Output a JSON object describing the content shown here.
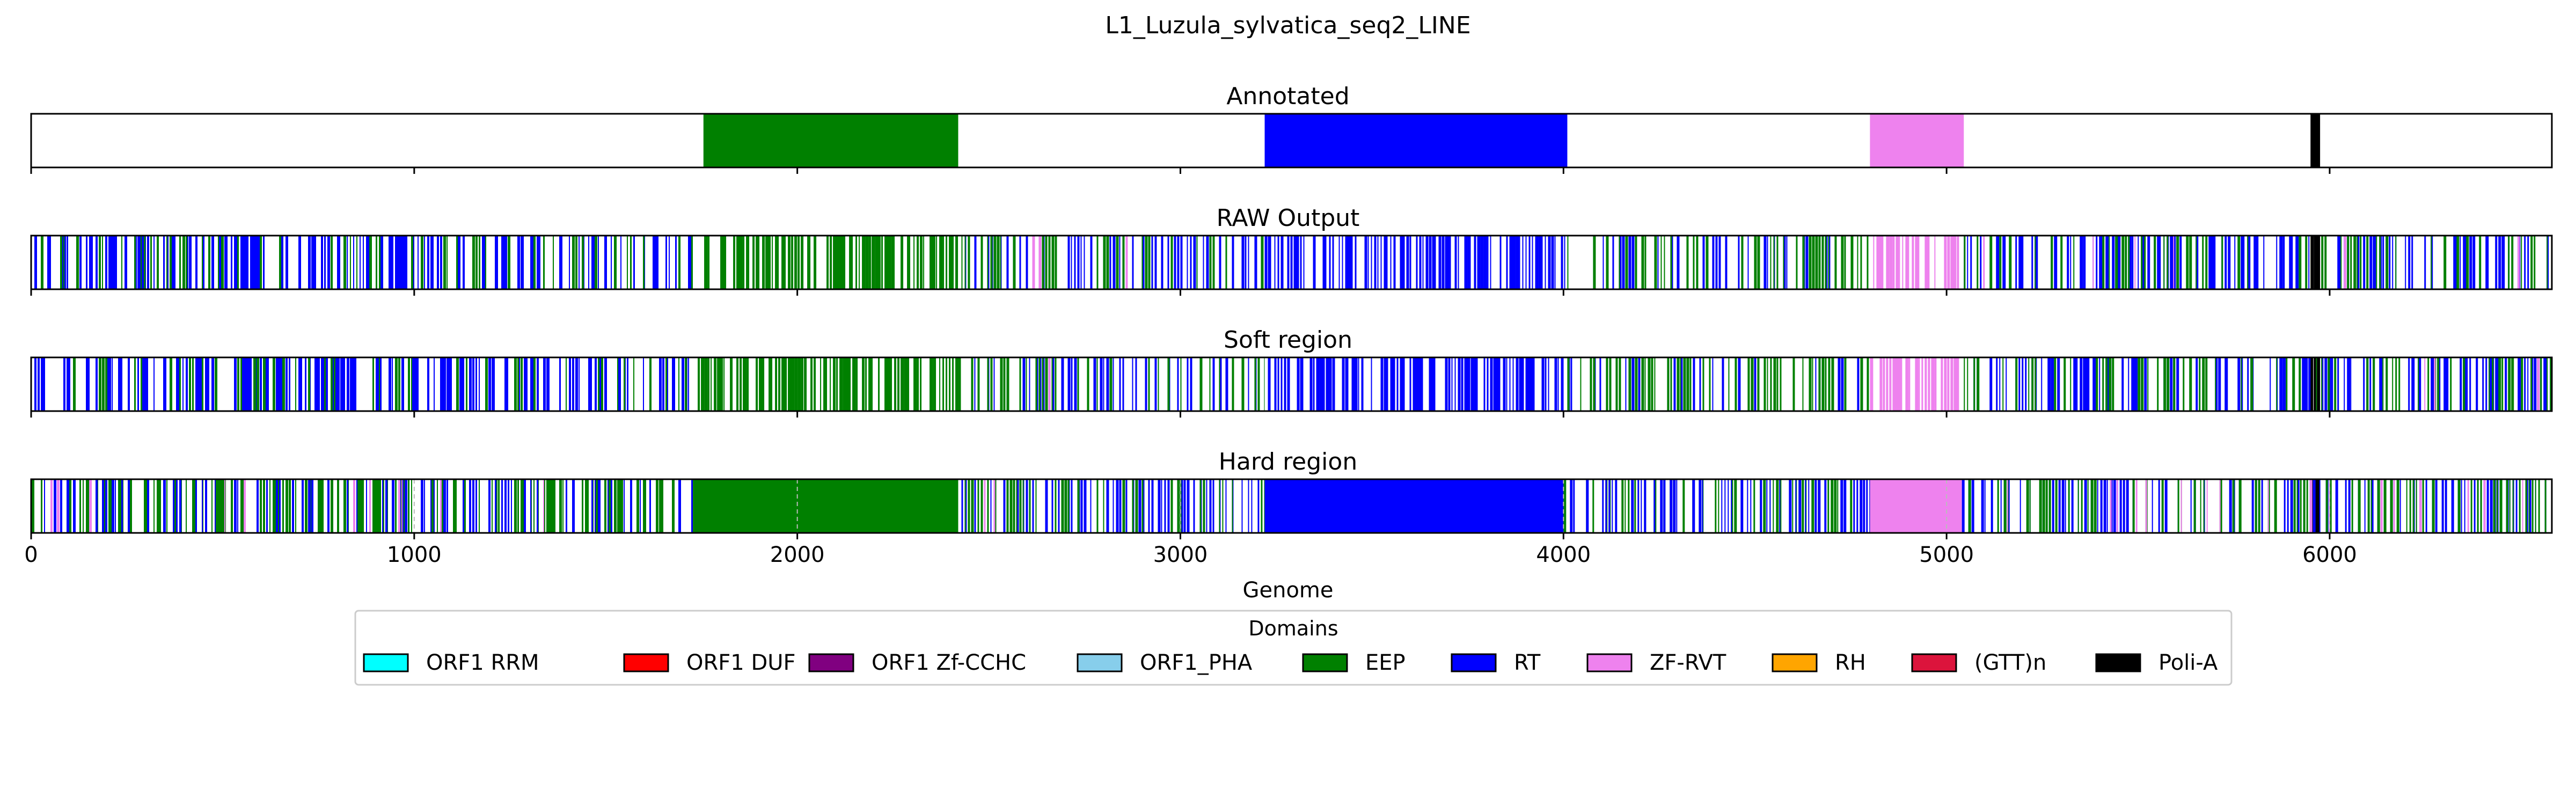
{
  "chart_data": {
    "type": "track",
    "title": "L1_Luzula_sylvatica_seq2_LINE",
    "xlabel": "Genome",
    "xlim": [
      0,
      6580
    ],
    "xticks": [
      0,
      1000,
      2000,
      3000,
      4000,
      5000,
      6000
    ],
    "legend": {
      "title": "Domains",
      "placement": "bottom-center",
      "entries": [
        {
          "name": "ORF1 RRM",
          "color": "#00ffff"
        },
        {
          "name": "ORF1 DUF",
          "color": "#ff0000"
        },
        {
          "name": "ORF1 Zf-CCHC",
          "color": "#800080"
        },
        {
          "name": "ORF1_PHA",
          "color": "#87ceeb"
        },
        {
          "name": "EEP",
          "color": "#008000"
        },
        {
          "name": "RT",
          "color": "#0000ff"
        },
        {
          "name": "ZF-RVT",
          "color": "#ee82ee"
        },
        {
          "name": "RH",
          "color": "#ffa500"
        },
        {
          "name": "(GTT)n",
          "color": "#dc143c"
        },
        {
          "name": "Poli-A",
          "color": "#000000"
        }
      ]
    },
    "tracks": [
      {
        "title": "Annotated",
        "style": "solid",
        "segments": [
          {
            "domain": "EEP",
            "start": 1755,
            "end": 2420
          },
          {
            "domain": "RT",
            "start": 3220,
            "end": 4010
          },
          {
            "domain": "ZF-RVT",
            "start": 4800,
            "end": 5045
          },
          {
            "domain": "Poli-A",
            "start": 5950,
            "end": 5975
          }
        ]
      },
      {
        "title": "RAW Output",
        "style": "striped",
        "regions": [
          {
            "domain": "RT",
            "start": 0,
            "end": 1740,
            "density": 0.6
          },
          {
            "domain": "EEP",
            "start": 0,
            "end": 1740,
            "density": 0.25
          },
          {
            "domain": "EEP",
            "start": 1740,
            "end": 2420,
            "density": 0.75
          },
          {
            "domain": "RT",
            "start": 2420,
            "end": 3220,
            "density": 0.45
          },
          {
            "domain": "EEP",
            "start": 2420,
            "end": 3220,
            "density": 0.3
          },
          {
            "domain": "ZF-RVT",
            "start": 2420,
            "end": 3220,
            "density": 0.03
          },
          {
            "domain": "RT",
            "start": 3220,
            "end": 4010,
            "density": 0.8
          },
          {
            "domain": "RT",
            "start": 4010,
            "end": 4800,
            "density": 0.35
          },
          {
            "domain": "EEP",
            "start": 4010,
            "end": 4800,
            "density": 0.4
          },
          {
            "domain": "ZF-RVT",
            "start": 4800,
            "end": 5045,
            "density": 0.55
          },
          {
            "domain": "RT",
            "start": 5045,
            "end": 6580,
            "density": 0.55
          },
          {
            "domain": "EEP",
            "start": 5045,
            "end": 6580,
            "density": 0.3
          },
          {
            "domain": "ZF-RVT",
            "start": 5045,
            "end": 6580,
            "density": 0.03
          },
          {
            "domain": "Poli-A",
            "start": 5950,
            "end": 5975,
            "density": 1.0
          }
        ]
      },
      {
        "title": "Soft region",
        "style": "striped",
        "regions": [
          {
            "domain": "RT",
            "start": 0,
            "end": 1740,
            "density": 0.6
          },
          {
            "domain": "EEP",
            "start": 0,
            "end": 1740,
            "density": 0.25
          },
          {
            "domain": "EEP",
            "start": 1740,
            "end": 2420,
            "density": 0.75
          },
          {
            "domain": "RT",
            "start": 2420,
            "end": 3220,
            "density": 0.45
          },
          {
            "domain": "EEP",
            "start": 2420,
            "end": 3220,
            "density": 0.3
          },
          {
            "domain": "ZF-RVT",
            "start": 2420,
            "end": 3220,
            "density": 0.03
          },
          {
            "domain": "RT",
            "start": 3220,
            "end": 4010,
            "density": 0.8
          },
          {
            "domain": "RT",
            "start": 4010,
            "end": 4800,
            "density": 0.35
          },
          {
            "domain": "EEP",
            "start": 4010,
            "end": 4800,
            "density": 0.4
          },
          {
            "domain": "ZF-RVT",
            "start": 4800,
            "end": 5045,
            "density": 0.55
          },
          {
            "domain": "RT",
            "start": 5045,
            "end": 6580,
            "density": 0.55
          },
          {
            "domain": "EEP",
            "start": 5045,
            "end": 6580,
            "density": 0.3
          },
          {
            "domain": "ZF-RVT",
            "start": 5045,
            "end": 6580,
            "density": 0.03
          },
          {
            "domain": "Poli-A",
            "start": 5950,
            "end": 5975,
            "density": 1.0
          }
        ]
      },
      {
        "title": "Hard region",
        "style": "filled",
        "segments": [
          {
            "domain": "EEP",
            "start": 1730,
            "end": 2420
          },
          {
            "domain": "RT",
            "start": 3220,
            "end": 4000
          },
          {
            "domain": "ZF-RVT",
            "start": 4800,
            "end": 5040
          },
          {
            "domain": "Poli-A",
            "start": 5950,
            "end": 5975
          }
        ],
        "regions": [
          {
            "domain": "EEP",
            "start": 0,
            "end": 1730,
            "density": 0.55
          },
          {
            "domain": "RT",
            "start": 0,
            "end": 1730,
            "density": 0.35
          },
          {
            "domain": "ZF-RVT",
            "start": 0,
            "end": 1730,
            "density": 0.04
          },
          {
            "domain": "RT",
            "start": 2420,
            "end": 3220,
            "density": 0.5
          },
          {
            "domain": "EEP",
            "start": 2420,
            "end": 3220,
            "density": 0.4
          },
          {
            "domain": "ZF-RVT",
            "start": 2420,
            "end": 3220,
            "density": 0.04
          },
          {
            "domain": "EEP",
            "start": 4000,
            "end": 4800,
            "density": 0.5
          },
          {
            "domain": "RT",
            "start": 4000,
            "end": 4800,
            "density": 0.4
          },
          {
            "domain": "RT",
            "start": 5040,
            "end": 6580,
            "density": 0.5
          },
          {
            "domain": "EEP",
            "start": 5040,
            "end": 6580,
            "density": 0.35
          },
          {
            "domain": "ZF-RVT",
            "start": 5040,
            "end": 6580,
            "density": 0.06
          }
        ]
      }
    ]
  }
}
